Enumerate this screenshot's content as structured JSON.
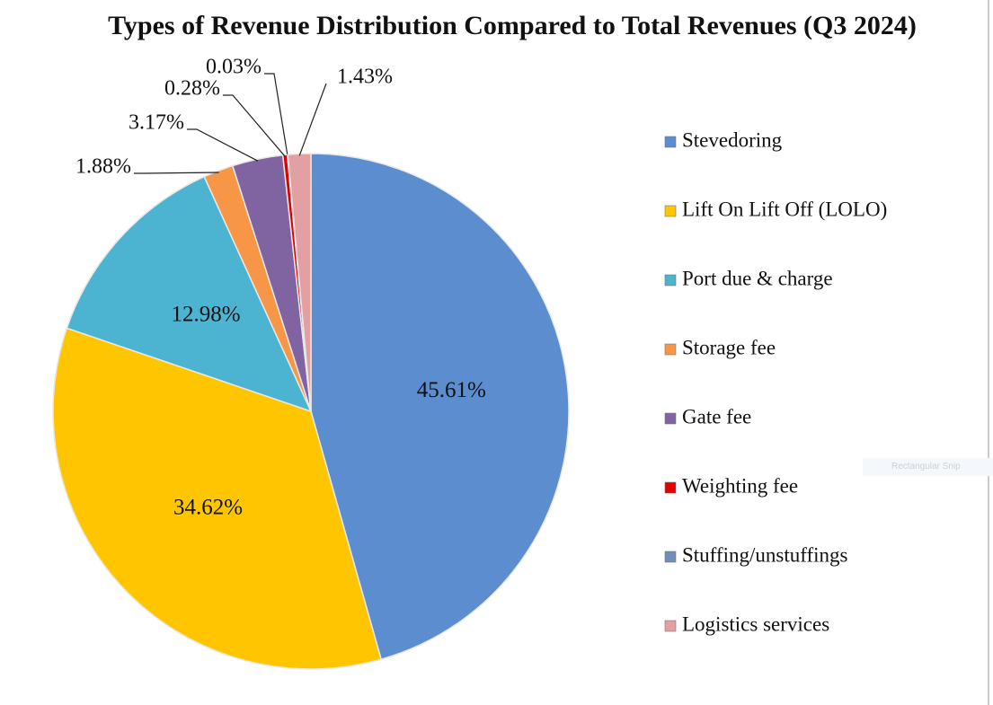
{
  "chart_data": {
    "type": "pie",
    "title": "Types of Revenue Distribution Compared to Total Revenues (Q3 2024)",
    "categories": [
      "Stevedoring",
      "Lift On Lift Off (LOLO)",
      "Port due & charge",
      "Storage fee",
      "Gate fee",
      "Weighting fee",
      "Stuffing/unstuffings",
      "Logistics services"
    ],
    "values": [
      45.61,
      34.62,
      12.98,
      1.88,
      3.17,
      0.28,
      0.03,
      1.43
    ],
    "value_labels": [
      "45.61%",
      "34.62%",
      "12.98%",
      "1.88%",
      "3.17%",
      "0.28%",
      "0.03%",
      "1.43%"
    ],
    "colors": [
      "#5b8dcf",
      "#ffc600",
      "#4cb3d1",
      "#f79646",
      "#8064a2",
      "#e00000",
      "#6f8fb8",
      "#e3a0a2"
    ],
    "legend": "right"
  },
  "overlay_text": "Rectangular Snip"
}
